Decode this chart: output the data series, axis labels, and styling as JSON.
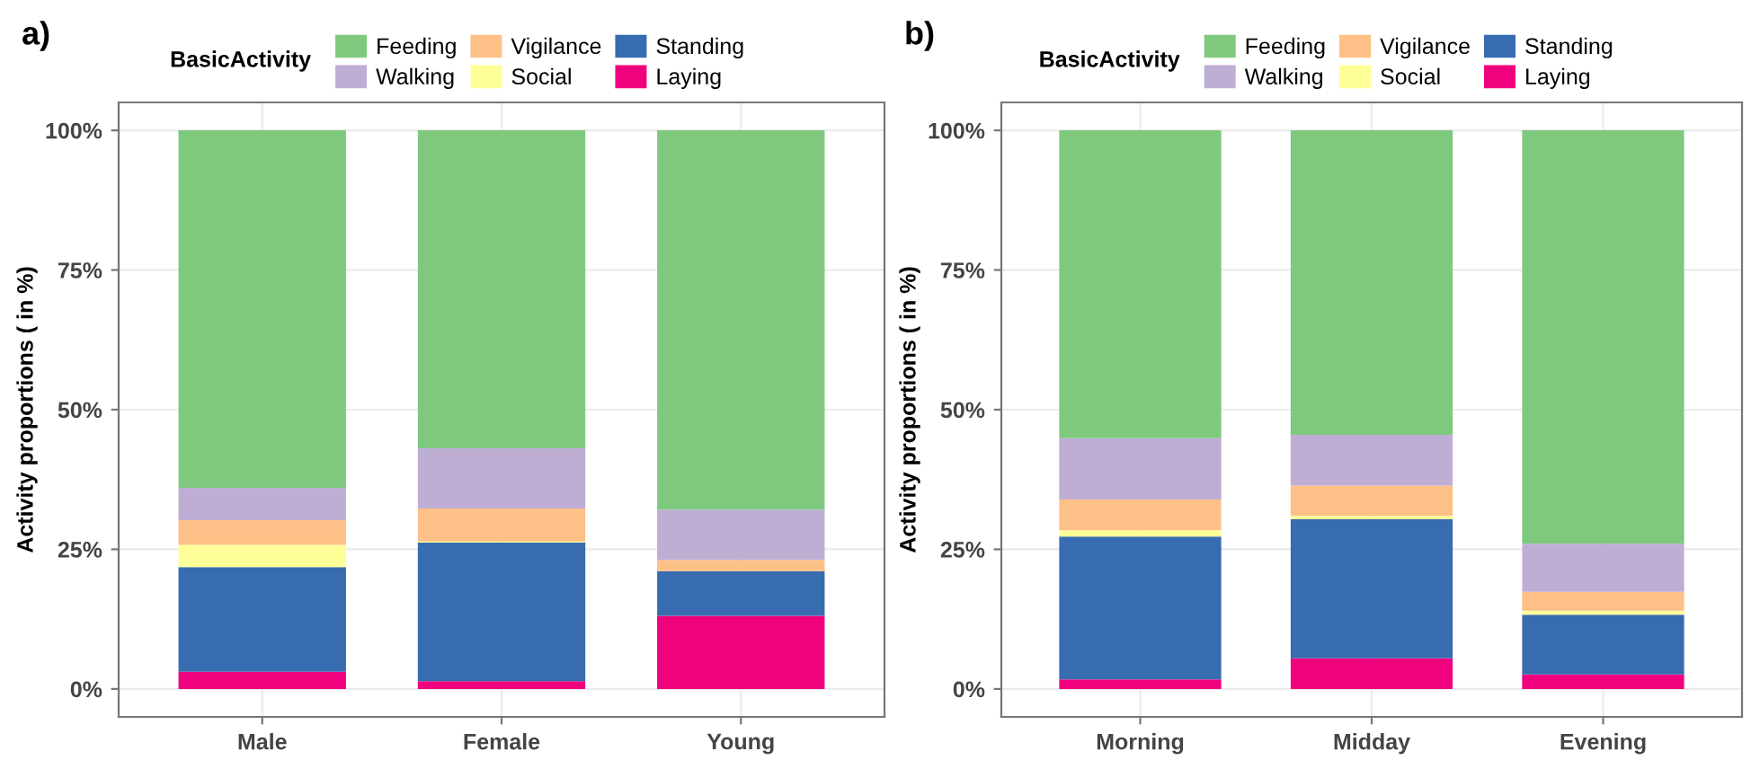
{
  "chart_data": [
    {
      "type": "bar",
      "title": "a)",
      "ylabel": "Activity proportions ( in %)",
      "legend_title": "BasicActivity",
      "stacked": true,
      "legend": "top",
      "grid": true,
      "categories": [
        "Male",
        "Female",
        "Young"
      ],
      "ylim": [
        -5,
        105
      ],
      "yticks": [
        {
          "value": 0,
          "label": "0%"
        },
        {
          "value": 25,
          "label": "25%"
        },
        {
          "value": 50,
          "label": "50%"
        },
        {
          "value": 75,
          "label": "75%"
        },
        {
          "value": 100,
          "label": "100%"
        }
      ],
      "series": [
        {
          "name": "Laying",
          "color": "#f0027f",
          "values": [
            3.1,
            1.4,
            13.1
          ]
        },
        {
          "name": "Standing",
          "color": "#386cb0",
          "values": [
            18.7,
            24.8,
            8.0
          ]
        },
        {
          "name": "Social",
          "color": "#ffff99",
          "values": [
            4.0,
            0.2,
            0
          ]
        },
        {
          "name": "Vigilance",
          "color": "#fdc086",
          "values": [
            4.4,
            5.9,
            2.0
          ]
        },
        {
          "name": "Walking",
          "color": "#beaed4",
          "values": [
            5.8,
            10.8,
            9.0
          ]
        },
        {
          "name": "Feeding",
          "color": "#7fc97f",
          "values": [
            64.0,
            56.9,
            67.9
          ]
        }
      ]
    },
    {
      "type": "bar",
      "title": "b)",
      "ylabel": "Activity proportions ( in %)",
      "legend_title": "BasicActivity",
      "stacked": true,
      "legend": "top",
      "grid": true,
      "categories": [
        "Morning",
        "Midday",
        "Evening"
      ],
      "ylim": [
        -5,
        105
      ],
      "yticks": [
        {
          "value": 0,
          "label": "0%"
        },
        {
          "value": 25,
          "label": "25%"
        },
        {
          "value": 50,
          "label": "50%"
        },
        {
          "value": 75,
          "label": "75%"
        },
        {
          "value": 100,
          "label": "100%"
        }
      ],
      "series": [
        {
          "name": "Laying",
          "color": "#f0027f",
          "values": [
            1.7,
            5.5,
            2.6
          ]
        },
        {
          "name": "Standing",
          "color": "#386cb0",
          "values": [
            25.6,
            24.9,
            10.7
          ]
        },
        {
          "name": "Social",
          "color": "#ffff99",
          "values": [
            1.1,
            0.6,
            0.7
          ]
        },
        {
          "name": "Vigilance",
          "color": "#fdc086",
          "values": [
            5.5,
            5.4,
            3.4
          ]
        },
        {
          "name": "Walking",
          "color": "#beaed4",
          "values": [
            11.0,
            9.1,
            8.6
          ]
        },
        {
          "name": "Feeding",
          "color": "#7fc97f",
          "values": [
            55.1,
            54.5,
            74.0
          ]
        }
      ]
    }
  ]
}
